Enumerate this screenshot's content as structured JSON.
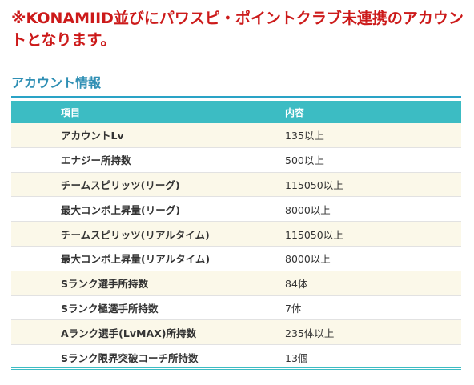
{
  "notice": "※KONAMIID並びにパワスピ・ポイントクラブ未連携のアカウントとなります。",
  "section_title": "アカウント情報",
  "table": {
    "headers": [
      "項目",
      "内容"
    ],
    "rows": [
      [
        "アカウントLv",
        "135以上"
      ],
      [
        "エナジー所持数",
        "500以上"
      ],
      [
        "チームスピリッツ(リーグ)",
        "115050以上"
      ],
      [
        "最大コンボ上昇量(リーグ)",
        "8000以上"
      ],
      [
        "チームスピリッツ(リアルタイム)",
        "115050以上"
      ],
      [
        "最大コンボ上昇量(リアルタイム)",
        "8000以上"
      ],
      [
        "Sランク選手所持数",
        "84体"
      ],
      [
        "Sランク極選手所持数",
        "7体"
      ],
      [
        "Aランク選手(LvMAX)所持数",
        "235体以上"
      ],
      [
        "Sランク限界突破コーチ所持数",
        "13個"
      ]
    ]
  },
  "colors": {
    "notice_red": "#cc1a1a",
    "title_blue": "#2f8fb4",
    "header_teal": "#3cbcc3",
    "odd_row": "#fbf8e9"
  }
}
